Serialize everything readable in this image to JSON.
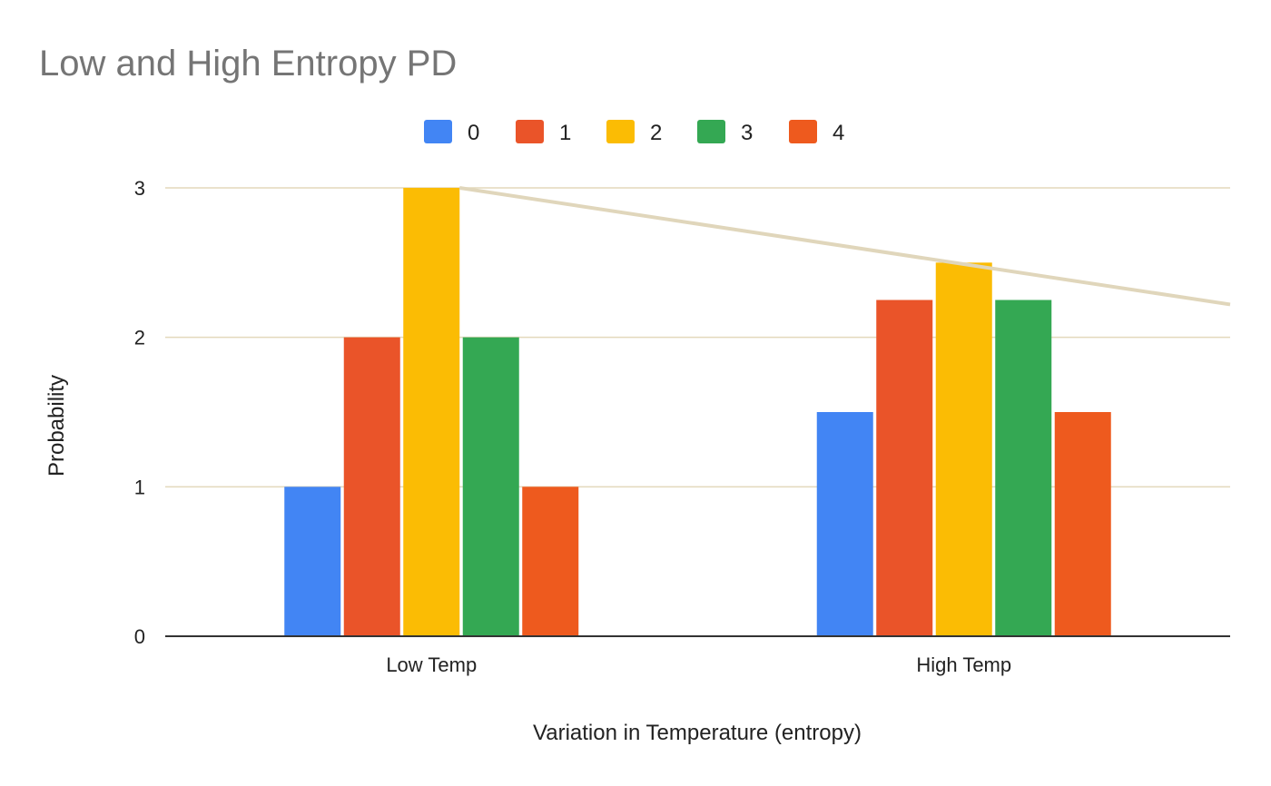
{
  "chart_data": {
    "type": "bar",
    "title": "Low and High Entropy PD",
    "xlabel": "Variation in Temperature (entropy)",
    "ylabel": "Probability",
    "categories": [
      "Low Temp",
      "High Temp"
    ],
    "ylim": [
      0,
      3
    ],
    "yticks": [
      0,
      1,
      2,
      3
    ],
    "grid": true,
    "legend_position": "top",
    "series": [
      {
        "name": "0",
        "values": [
          1,
          1.5
        ],
        "color": "#4285F4"
      },
      {
        "name": "1",
        "values": [
          2,
          2.25
        ],
        "color": "#EA5429"
      },
      {
        "name": "2",
        "values": [
          3,
          2.5
        ],
        "color": "#FBBC04"
      },
      {
        "name": "3",
        "values": [
          2,
          2.25
        ],
        "color": "#34A853"
      },
      {
        "name": "4",
        "values": [
          1,
          1.5
        ],
        "color": "#EE5A1E"
      }
    ],
    "trendline": {
      "color": "#E0D6BB",
      "values": [
        3,
        2.22
      ]
    }
  }
}
